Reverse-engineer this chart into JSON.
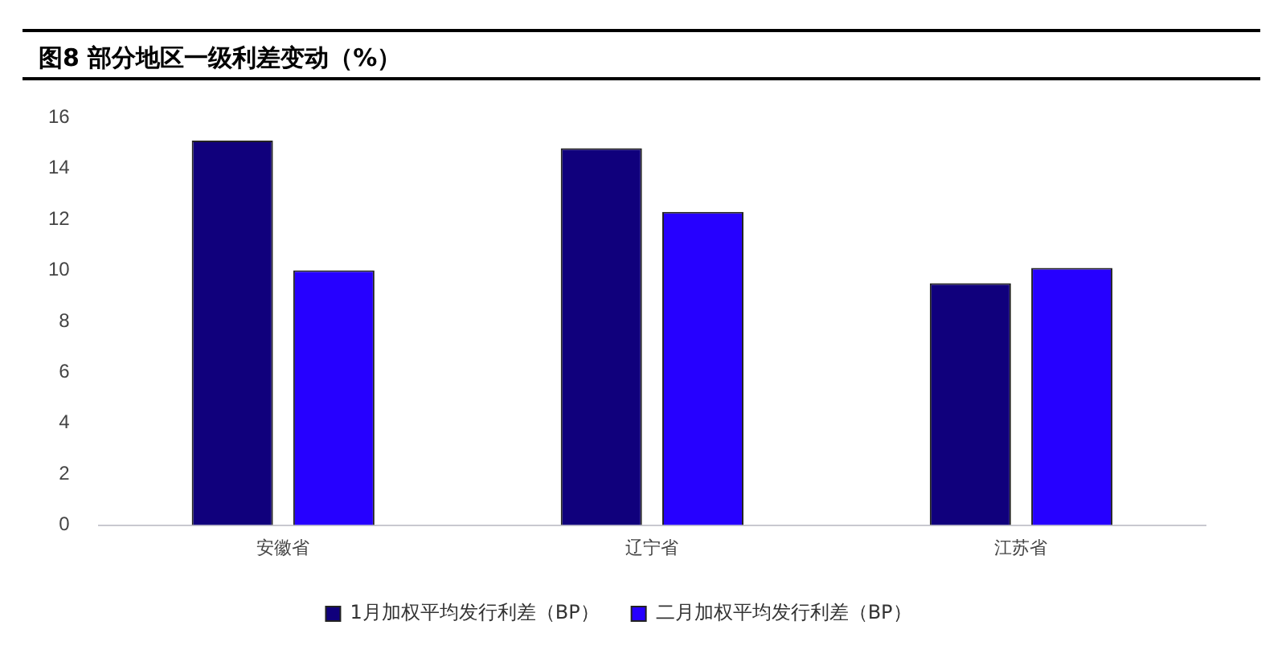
{
  "chart_data": {
    "type": "bar",
    "title": "图8  部分地区一级利差变动（%）",
    "categories": [
      "安徽省",
      "辽宁省",
      "江苏省"
    ],
    "series": [
      {
        "name": "1月加权平均发行利差（BP）",
        "color": "#10007c",
        "values": [
          15.1,
          14.8,
          9.5
        ]
      },
      {
        "name": "二月加权平均发行利差（BP）",
        "color": "#2600ff",
        "values": [
          10.0,
          12.3,
          10.1
        ]
      }
    ],
    "ylim": [
      0,
      16
    ],
    "yticks": [
      0,
      2,
      4,
      6,
      8,
      10,
      12,
      14,
      16
    ],
    "grid": false,
    "legend": "bottom"
  }
}
